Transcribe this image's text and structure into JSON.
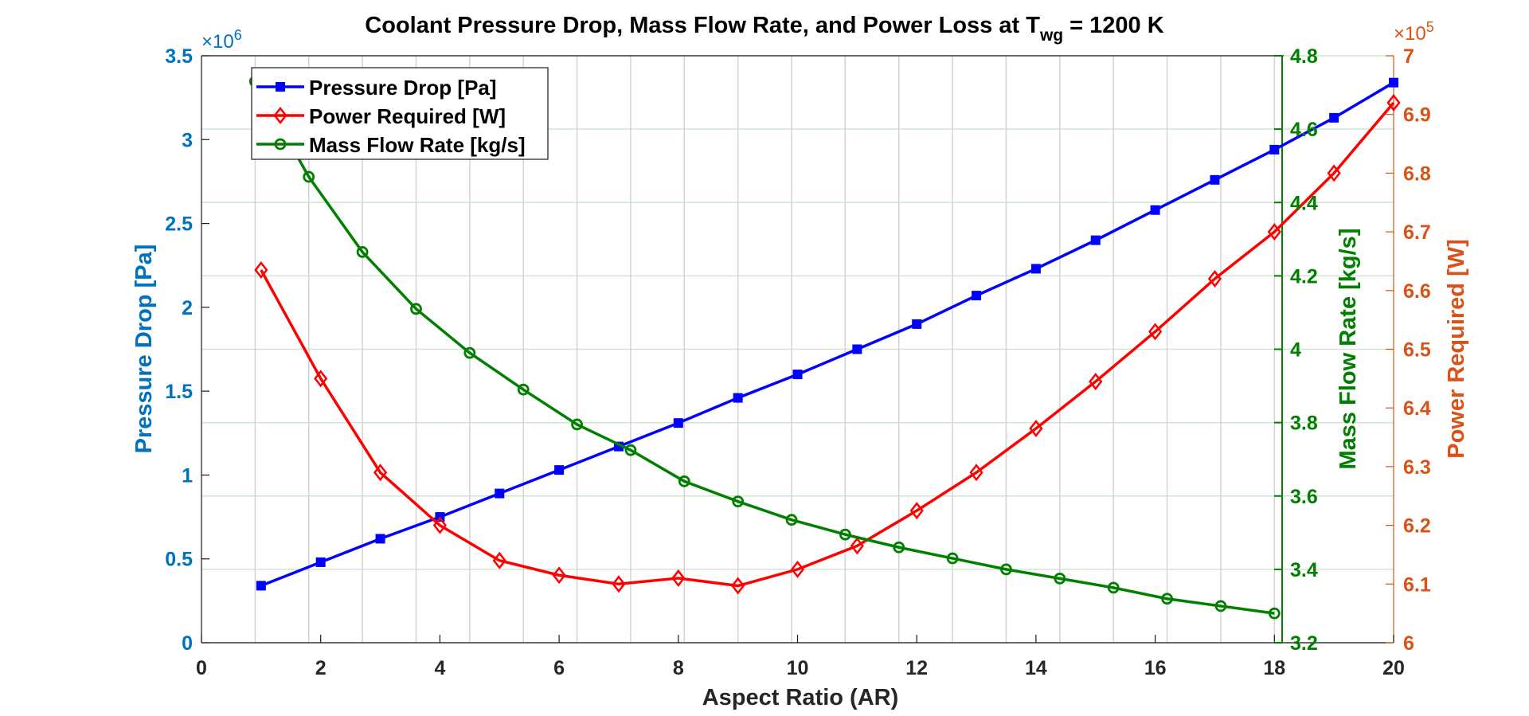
{
  "chart_data": {
    "type": "line",
    "title": "Coolant Pressure Drop, Mass Flow Rate, and Power Loss at T",
    "title_subscript": "wg",
    "title_suffix": " = 1200 K",
    "xlabel": "Aspect Ratio (AR)",
    "xlim": [
      0,
      20
    ],
    "xticks": [
      "0",
      "2",
      "4",
      "6",
      "8",
      "10",
      "12",
      "14",
      "16",
      "18",
      "20"
    ],
    "grid": true,
    "legend_position": "top-left",
    "axes": {
      "left": {
        "label": "Pressure Drop [Pa]",
        "exponent_base": "×10",
        "exponent": "6",
        "ylim": [
          0,
          3.5
        ],
        "ticks": [
          "0",
          "0.5",
          "1",
          "1.5",
          "2",
          "2.5",
          "3",
          "3.5"
        ],
        "color": "#0072BD"
      },
      "right_green": {
        "label": "Mass Flow Rate [kg/s]",
        "ylim": [
          3.2,
          4.8
        ],
        "ticks": [
          "3.2",
          "3.4",
          "3.6",
          "3.8",
          "4",
          "4.2",
          "4.4",
          "4.6",
          "4.8"
        ],
        "color": "#008000"
      },
      "right_orange": {
        "label": "Power Required [W]",
        "exponent_base": "×10",
        "exponent": "5",
        "ylim": [
          6,
          7
        ],
        "ticks": [
          "6",
          "6.1",
          "6.2",
          "6.3",
          "6.4",
          "6.5",
          "6.6",
          "6.7",
          "6.8",
          "6.9",
          "7"
        ],
        "color": "#D95319"
      }
    },
    "series": [
      {
        "name": "Pressure Drop [Pa]",
        "axis": "left",
        "color": "#0000FF",
        "marker": "square",
        "x": [
          1,
          2,
          3,
          4,
          5,
          6,
          7,
          8,
          9,
          10,
          11,
          12,
          13,
          14,
          15,
          16,
          17,
          18,
          19,
          20
        ],
        "y": [
          0.34,
          0.48,
          0.62,
          0.75,
          0.89,
          1.03,
          1.17,
          1.31,
          1.46,
          1.6,
          1.75,
          1.9,
          2.07,
          2.23,
          2.4,
          2.58,
          2.76,
          2.94,
          3.13,
          3.34
        ]
      },
      {
        "name": "Power Required [W]",
        "axis": "right_orange",
        "color": "#FF0000",
        "marker": "diamond",
        "x": [
          1,
          2,
          3,
          4,
          5,
          6,
          7,
          8,
          9,
          10,
          11,
          12,
          13,
          14,
          15,
          16,
          17,
          18,
          19,
          20
        ],
        "y": [
          6.635,
          6.45,
          6.29,
          6.2,
          6.14,
          6.115,
          6.1,
          6.11,
          6.097,
          6.125,
          6.165,
          6.225,
          6.29,
          6.365,
          6.445,
          6.53,
          6.62,
          6.7,
          6.8,
          6.92
        ]
      },
      {
        "name": "Mass Flow Rate [kg/s]",
        "axis": "right_green",
        "color": "#008000",
        "marker": "circle",
        "x": [
          0.9,
          1.8,
          2.7,
          3.6,
          4.5,
          5.4,
          6.3,
          7.2,
          8.1,
          9.0,
          9.9,
          10.8,
          11.7,
          12.6,
          13.5,
          14.4,
          15.3,
          16.2,
          17.1,
          18.0
        ],
        "y": [
          4.73,
          4.47,
          4.265,
          4.11,
          3.99,
          3.89,
          3.795,
          3.725,
          3.64,
          3.585,
          3.535,
          3.495,
          3.46,
          3.43,
          3.4,
          3.375,
          3.35,
          3.32,
          3.3,
          3.28
        ]
      }
    ]
  }
}
